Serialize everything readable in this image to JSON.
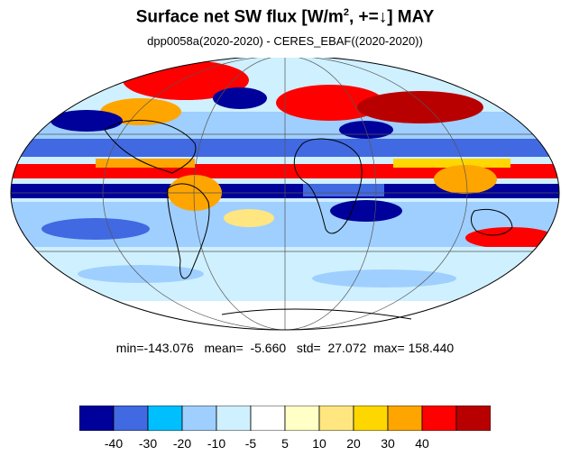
{
  "title": {
    "main": "Surface net SW flux [W/m",
    "sup": "2",
    "rest": ", +=↓]  MAY"
  },
  "subtitle": "dpp0058a(2020-2020) - CERES_EBAF((2020-2020))",
  "stats": {
    "min_label": "min=",
    "min": "-143.076",
    "mean_label": "mean=",
    "mean": "-5.660",
    "std_label": "std=",
    "std": "27.072",
    "max_label": "max=",
    "max": "158.440"
  },
  "map": {
    "projection": "mollweide",
    "continent_outline_color": "#000000"
  },
  "colorbar": {
    "colors": [
      "#00009a",
      "#4169e1",
      "#00bfff",
      "#9fcfff",
      "#cff0ff",
      "#ffffff",
      "#ffffc6",
      "#ffe680",
      "#ffd700",
      "#ffa500",
      "#ff0000",
      "#b90000"
    ],
    "ticks": [
      "-40",
      "-30",
      "-20",
      "-10",
      "-5",
      "5",
      "10",
      "20",
      "30",
      "40"
    ]
  }
}
